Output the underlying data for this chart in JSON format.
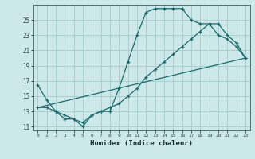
{
  "xlabel": "Humidex (Indice chaleur)",
  "bg_color": "#cce8e8",
  "grid_color": "#aacfcf",
  "line_color": "#1a6b6b",
  "xlim": [
    -0.5,
    23.5
  ],
  "ylim": [
    10.5,
    27.0
  ],
  "xticks": [
    0,
    1,
    2,
    3,
    4,
    5,
    6,
    7,
    8,
    9,
    10,
    11,
    12,
    13,
    14,
    15,
    16,
    17,
    18,
    19,
    20,
    21,
    22,
    23
  ],
  "yticks": [
    11,
    13,
    15,
    17,
    19,
    21,
    23,
    25
  ],
  "line1_x": [
    0,
    1,
    2,
    3,
    4,
    5,
    6,
    7,
    8,
    9,
    10,
    11,
    12,
    13,
    14,
    15,
    16,
    17,
    18,
    19,
    20,
    21,
    22,
    23
  ],
  "line1_y": [
    16.5,
    14.5,
    13.0,
    12.5,
    12.0,
    11.0,
    12.5,
    13.0,
    13.0,
    16.0,
    19.5,
    23.0,
    26.0,
    26.5,
    26.5,
    26.5,
    26.5,
    25.0,
    24.5,
    24.5,
    23.0,
    22.5,
    21.5,
    20.0
  ],
  "line2_x": [
    0,
    1,
    2,
    3,
    4,
    5,
    6,
    7,
    8,
    9,
    10,
    11,
    12,
    13,
    14,
    15,
    16,
    17,
    18,
    19,
    20,
    21,
    22,
    23
  ],
  "line2_y": [
    13.5,
    13.5,
    13.0,
    12.0,
    12.0,
    11.5,
    12.5,
    13.0,
    13.5,
    14.0,
    15.0,
    16.0,
    17.5,
    18.5,
    19.5,
    20.5,
    21.5,
    22.5,
    23.5,
    24.5,
    24.5,
    23.0,
    22.0,
    20.0
  ],
  "line3_x": [
    0,
    23
  ],
  "line3_y": [
    13.5,
    20.0
  ]
}
